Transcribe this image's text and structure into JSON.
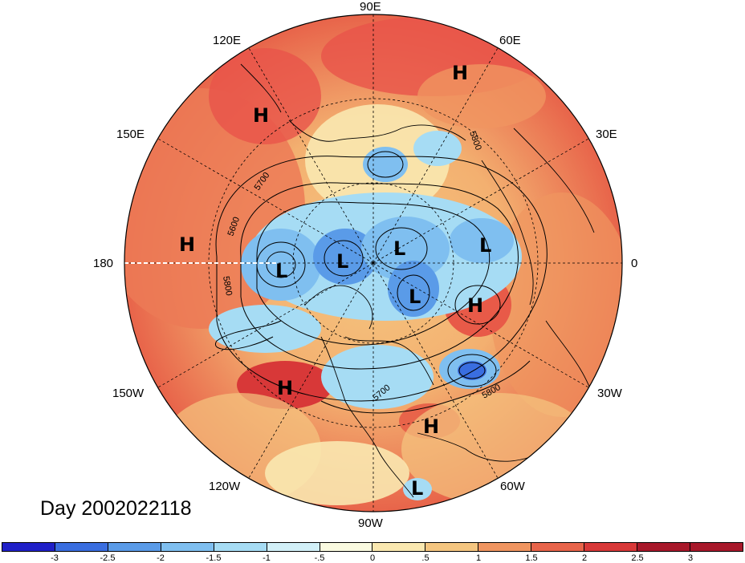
{
  "day_label": "Day 2002022118",
  "longitude_labels": {
    "top": "90E",
    "e120": "120E",
    "e60": "60E",
    "e150": "150E",
    "e30": "30E",
    "w180": "180",
    "zero": "0",
    "w150": "150W",
    "w30": "30W",
    "w120": "120W",
    "w60": "60W",
    "bottom": "90W"
  },
  "pressure_systems": [
    {
      "label": "H",
      "region": "siberia"
    },
    {
      "label": "H",
      "region": "east-asia"
    },
    {
      "label": "H",
      "region": "north-pacific"
    },
    {
      "label": "H",
      "region": "eastern-atlantic"
    },
    {
      "label": "H",
      "region": "northeast-pacific"
    },
    {
      "label": "H",
      "region": "caribbean"
    },
    {
      "label": "L",
      "region": "bering"
    },
    {
      "label": "L",
      "region": "arctic-1"
    },
    {
      "label": "L",
      "region": "arctic-2"
    },
    {
      "label": "L",
      "region": "arctic-3"
    },
    {
      "label": "L",
      "region": "greenland"
    },
    {
      "label": "L",
      "region": "central-america"
    }
  ],
  "contour_labels": [
    "5800",
    "5700",
    "5600",
    "5800",
    "5800",
    "5700"
  ],
  "colorbar": {
    "ticks": [
      "-3",
      "-2.5",
      "-2",
      "-1.5",
      "-1",
      "-.5",
      "0",
      ".5",
      "1",
      "1.5",
      "2",
      "2.5",
      "3"
    ],
    "colors": [
      "#2020c8",
      "#3a6ee0",
      "#5a9be8",
      "#7fbff0",
      "#a6dcf4",
      "#d2f0f8",
      "#fafae0",
      "#fae8b0",
      "#f5c680",
      "#f09560",
      "#e8644a",
      "#d83838",
      "#a8182a",
      "#a8182a"
    ]
  }
}
